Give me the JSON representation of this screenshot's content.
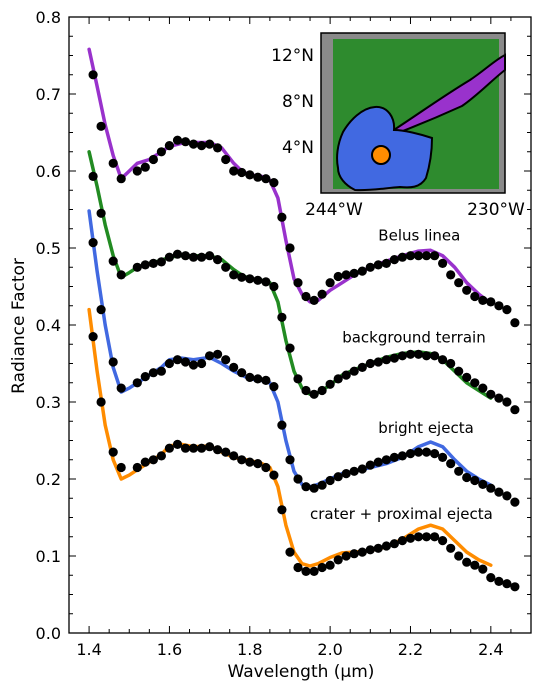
{
  "chart_data": {
    "type": "line",
    "xlabel": "Wavelength (μm)",
    "ylabel": "Radiance Factor",
    "xlim": [
      1.35,
      2.5
    ],
    "ylim": [
      0.0,
      0.8
    ],
    "x_ticks": [
      "1.4",
      "1.6",
      "1.8",
      "2.0",
      "2.2",
      "2.4"
    ],
    "y_ticks": [
      "0.0",
      "0.1",
      "0.2",
      "0.3",
      "0.4",
      "0.5",
      "0.6",
      "0.7",
      "0.8"
    ],
    "series": [
      {
        "name": "Belus linea",
        "color": "#9932CC",
        "model_x": [
          1.4,
          1.42,
          1.44,
          1.46,
          1.48,
          1.5,
          1.52,
          1.55,
          1.58,
          1.6,
          1.63,
          1.66,
          1.7,
          1.73,
          1.76,
          1.78,
          1.8,
          1.83,
          1.85,
          1.87,
          1.89,
          1.91,
          1.93,
          1.95,
          1.97,
          2.0,
          2.03,
          2.06,
          2.1,
          2.14,
          2.18,
          2.22,
          2.25,
          2.28,
          2.31,
          2.34,
          2.37,
          2.4
        ],
        "model_y": [
          0.758,
          0.71,
          0.66,
          0.62,
          0.59,
          0.6,
          0.61,
          0.615,
          0.625,
          0.632,
          0.636,
          0.637,
          0.637,
          0.63,
          0.61,
          0.6,
          0.595,
          0.593,
          0.588,
          0.565,
          0.51,
          0.46,
          0.44,
          0.43,
          0.432,
          0.445,
          0.455,
          0.465,
          0.475,
          0.483,
          0.49,
          0.496,
          0.497,
          0.49,
          0.475,
          0.455,
          0.44,
          0.428
        ],
        "obs_x": [
          1.41,
          1.43,
          1.46,
          1.48,
          1.52,
          1.54,
          1.56,
          1.58,
          1.6,
          1.62,
          1.64,
          1.66,
          1.68,
          1.7,
          1.72,
          1.74,
          1.76,
          1.78,
          1.8,
          1.82,
          1.84,
          1.86,
          1.88,
          1.9,
          1.92,
          1.94,
          1.96,
          1.98,
          2.0,
          2.02,
          2.04,
          2.06,
          2.08,
          2.1,
          2.12,
          2.14,
          2.16,
          2.18,
          2.2,
          2.22,
          2.24,
          2.26,
          2.28,
          2.3,
          2.32,
          2.34,
          2.36,
          2.38,
          2.4,
          2.42,
          2.44,
          2.46
        ],
        "obs_y": [
          0.725,
          0.658,
          0.61,
          0.59,
          0.6,
          0.605,
          0.615,
          0.625,
          0.633,
          0.64,
          0.638,
          0.635,
          0.633,
          0.635,
          0.63,
          0.615,
          0.6,
          0.598,
          0.595,
          0.592,
          0.59,
          0.585,
          0.54,
          0.5,
          0.455,
          0.437,
          0.432,
          0.44,
          0.455,
          0.463,
          0.465,
          0.467,
          0.47,
          0.475,
          0.478,
          0.48,
          0.485,
          0.488,
          0.49,
          0.49,
          0.49,
          0.49,
          0.48,
          0.465,
          0.455,
          0.445,
          0.437,
          0.432,
          0.43,
          0.425,
          0.42,
          0.403
        ]
      },
      {
        "name": "background terrain",
        "color": "#228B22",
        "model_x": [
          1.4,
          1.42,
          1.44,
          1.46,
          1.48,
          1.5,
          1.52,
          1.55,
          1.58,
          1.6,
          1.63,
          1.66,
          1.7,
          1.73,
          1.76,
          1.78,
          1.8,
          1.83,
          1.85,
          1.87,
          1.89,
          1.91,
          1.93,
          1.95,
          1.97,
          2.0,
          2.03,
          2.06,
          2.1,
          2.14,
          2.18,
          2.22,
          2.25,
          2.28,
          2.31,
          2.34,
          2.37,
          2.4
        ],
        "model_y": [
          0.625,
          0.58,
          0.53,
          0.49,
          0.462,
          0.468,
          0.475,
          0.48,
          0.484,
          0.488,
          0.49,
          0.49,
          0.49,
          0.485,
          0.472,
          0.465,
          0.46,
          0.458,
          0.455,
          0.43,
          0.38,
          0.34,
          0.318,
          0.31,
          0.312,
          0.322,
          0.335,
          0.342,
          0.35,
          0.358,
          0.363,
          0.365,
          0.363,
          0.355,
          0.34,
          0.325,
          0.315,
          0.305
        ],
        "obs_x": [
          1.41,
          1.43,
          1.46,
          1.48,
          1.52,
          1.54,
          1.56,
          1.58,
          1.6,
          1.62,
          1.64,
          1.66,
          1.68,
          1.7,
          1.72,
          1.74,
          1.76,
          1.78,
          1.8,
          1.82,
          1.84,
          1.86,
          1.88,
          1.9,
          1.92,
          1.94,
          1.96,
          1.98,
          2.0,
          2.02,
          2.04,
          2.06,
          2.08,
          2.1,
          2.12,
          2.14,
          2.16,
          2.18,
          2.2,
          2.22,
          2.24,
          2.26,
          2.28,
          2.3,
          2.32,
          2.34,
          2.36,
          2.38,
          2.4,
          2.42,
          2.44,
          2.46
        ],
        "obs_y": [
          0.593,
          0.545,
          0.483,
          0.465,
          0.475,
          0.478,
          0.48,
          0.482,
          0.488,
          0.492,
          0.49,
          0.488,
          0.488,
          0.49,
          0.485,
          0.475,
          0.465,
          0.462,
          0.46,
          0.458,
          0.456,
          0.45,
          0.41,
          0.37,
          0.33,
          0.315,
          0.31,
          0.315,
          0.323,
          0.33,
          0.335,
          0.34,
          0.345,
          0.35,
          0.352,
          0.355,
          0.357,
          0.36,
          0.362,
          0.362,
          0.36,
          0.36,
          0.355,
          0.35,
          0.34,
          0.332,
          0.325,
          0.318,
          0.31,
          0.305,
          0.3,
          0.29
        ]
      },
      {
        "name": "bright ejecta",
        "color": "#4169E1",
        "model_x": [
          1.4,
          1.42,
          1.44,
          1.46,
          1.48,
          1.5,
          1.52,
          1.55,
          1.58,
          1.6,
          1.63,
          1.66,
          1.7,
          1.73,
          1.76,
          1.78,
          1.8,
          1.83,
          1.85,
          1.87,
          1.89,
          1.91,
          1.93,
          1.95,
          1.97,
          2.0,
          2.03,
          2.06,
          2.1,
          2.14,
          2.18,
          2.22,
          2.25,
          2.28,
          2.31,
          2.34,
          2.37,
          2.4
        ],
        "model_y": [
          0.548,
          0.47,
          0.4,
          0.345,
          0.313,
          0.318,
          0.325,
          0.335,
          0.345,
          0.355,
          0.357,
          0.355,
          0.358,
          0.35,
          0.34,
          0.335,
          0.33,
          0.328,
          0.325,
          0.3,
          0.25,
          0.21,
          0.193,
          0.19,
          0.193,
          0.2,
          0.207,
          0.21,
          0.215,
          0.22,
          0.228,
          0.242,
          0.248,
          0.242,
          0.225,
          0.21,
          0.2,
          0.192
        ],
        "obs_x": [
          1.41,
          1.43,
          1.46,
          1.48,
          1.52,
          1.54,
          1.56,
          1.58,
          1.6,
          1.62,
          1.64,
          1.66,
          1.68,
          1.7,
          1.72,
          1.74,
          1.76,
          1.78,
          1.8,
          1.82,
          1.84,
          1.86,
          1.88,
          1.9,
          1.92,
          1.94,
          1.96,
          1.98,
          2.0,
          2.02,
          2.04,
          2.06,
          2.08,
          2.1,
          2.12,
          2.14,
          2.16,
          2.18,
          2.2,
          2.22,
          2.24,
          2.26,
          2.28,
          2.3,
          2.32,
          2.34,
          2.36,
          2.38,
          2.4,
          2.42,
          2.44,
          2.46
        ],
        "obs_y": [
          0.507,
          0.42,
          0.352,
          0.318,
          0.325,
          0.333,
          0.338,
          0.34,
          0.35,
          0.355,
          0.352,
          0.348,
          0.35,
          0.36,
          0.362,
          0.355,
          0.345,
          0.338,
          0.332,
          0.33,
          0.328,
          0.32,
          0.27,
          0.225,
          0.2,
          0.19,
          0.188,
          0.192,
          0.198,
          0.203,
          0.207,
          0.21,
          0.213,
          0.218,
          0.222,
          0.225,
          0.228,
          0.23,
          0.233,
          0.235,
          0.235,
          0.233,
          0.228,
          0.22,
          0.21,
          0.202,
          0.198,
          0.193,
          0.188,
          0.183,
          0.178,
          0.17
        ]
      },
      {
        "name": "crater + proximal ejecta",
        "color": "#FF8C00",
        "model_x": [
          1.4,
          1.42,
          1.44,
          1.46,
          1.48,
          1.5,
          1.52,
          1.55,
          1.58,
          1.6,
          1.63,
          1.66,
          1.7,
          1.73,
          1.76,
          1.78,
          1.8,
          1.83,
          1.85,
          1.87,
          1.89,
          1.91,
          1.93,
          1.95,
          1.97,
          2.0,
          2.03,
          2.06,
          2.1,
          2.14,
          2.18,
          2.22,
          2.25,
          2.28,
          2.31,
          2.34,
          2.37,
          2.4
        ],
        "model_y": [
          0.42,
          0.34,
          0.27,
          0.225,
          0.2,
          0.205,
          0.212,
          0.222,
          0.232,
          0.243,
          0.245,
          0.242,
          0.243,
          0.235,
          0.228,
          0.226,
          0.224,
          0.22,
          0.215,
          0.19,
          0.14,
          0.105,
          0.09,
          0.087,
          0.09,
          0.098,
          0.104,
          0.105,
          0.107,
          0.112,
          0.122,
          0.135,
          0.14,
          0.135,
          0.12,
          0.105,
          0.095,
          0.088
        ],
        "obs_x": [
          1.41,
          1.43,
          1.46,
          1.48,
          1.52,
          1.54,
          1.56,
          1.58,
          1.6,
          1.62,
          1.64,
          1.66,
          1.68,
          1.7,
          1.72,
          1.74,
          1.76,
          1.78,
          1.8,
          1.82,
          1.84,
          1.86,
          1.88,
          1.9,
          1.92,
          1.94,
          1.96,
          1.98,
          2.0,
          2.02,
          2.04,
          2.06,
          2.08,
          2.1,
          2.12,
          2.14,
          2.16,
          2.18,
          2.2,
          2.22,
          2.24,
          2.26,
          2.28,
          2.3,
          2.32,
          2.34,
          2.36,
          2.38,
          2.4,
          2.42,
          2.44,
          2.46
        ],
        "obs_y": [
          0.385,
          0.3,
          0.235,
          0.215,
          0.215,
          0.222,
          0.225,
          0.23,
          0.24,
          0.245,
          0.24,
          0.24,
          0.24,
          0.242,
          0.238,
          0.235,
          0.23,
          0.225,
          0.222,
          0.22,
          0.215,
          0.205,
          0.16,
          0.105,
          0.085,
          0.08,
          0.08,
          0.085,
          0.088,
          0.095,
          0.1,
          0.103,
          0.105,
          0.108,
          0.11,
          0.113,
          0.116,
          0.12,
          0.123,
          0.125,
          0.125,
          0.125,
          0.12,
          0.11,
          0.1,
          0.092,
          0.088,
          0.083,
          0.072,
          0.067,
          0.064,
          0.06
        ]
      }
    ],
    "annotations": [
      {
        "text": "Belus linea",
        "x": 2.12,
        "y": 0.51
      },
      {
        "text": "background terrain",
        "x": 2.03,
        "y": 0.377
      },
      {
        "text": "bright ejecta",
        "x": 2.12,
        "y": 0.26
      },
      {
        "text": "crater + proximal ejecta",
        "x": 1.95,
        "y": 0.148
      }
    ],
    "inset_map": {
      "lat_labels": [
        "12°N",
        "8°N",
        "4°N"
      ],
      "lon_labels": [
        "244°W",
        "230°W"
      ],
      "colors": {
        "terrain": "#2E8B2E",
        "linea": "#9932CC",
        "ejecta": "#4169E1",
        "crater": "#FF8C00",
        "outside": "#8a8a8a"
      }
    }
  }
}
